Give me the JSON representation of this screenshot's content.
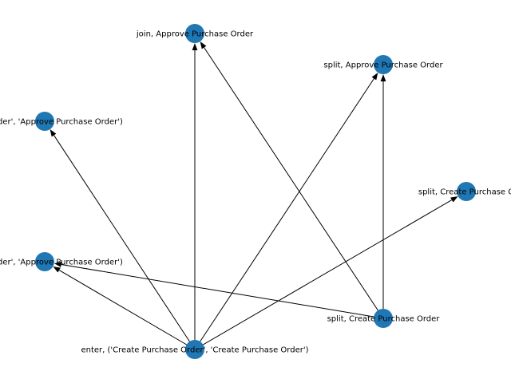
{
  "graph": {
    "node_color": "#1f77b4",
    "edge_color": "#000000",
    "nodes": [
      {
        "id": "n1",
        "name": "node-join-approve-purchase-order",
        "label": "join, Approve Purchase Order"
      },
      {
        "id": "n2",
        "name": "node-split-approve-purchase-order",
        "label": "split, Approve Purchase Order"
      },
      {
        "id": "n3",
        "name": "node-tuple-approve-upper",
        "label": "hase Order', 'Approve Purchase Order')"
      },
      {
        "id": "n4",
        "name": "node-split-create-purchase-order-right",
        "label": "split, Create Purchase O"
      },
      {
        "id": "n5",
        "name": "node-tuple-approve-lower",
        "label": "hase Order', 'Approve Purchase Order')"
      },
      {
        "id": "n6",
        "name": "node-split-create-purchase-order",
        "label": "split, Create Purchase Order"
      },
      {
        "id": "n7",
        "name": "node-enter-create-purchase-order",
        "label": "enter, ('Create Purchase Order', 'Create Purchase Order')"
      }
    ],
    "edges": [
      {
        "from": "n7",
        "to": "n1"
      },
      {
        "from": "n7",
        "to": "n2"
      },
      {
        "from": "n7",
        "to": "n3"
      },
      {
        "from": "n7",
        "to": "n4"
      },
      {
        "from": "n7",
        "to": "n5"
      },
      {
        "from": "n6",
        "to": "n1"
      },
      {
        "from": "n6",
        "to": "n2"
      },
      {
        "from": "n6",
        "to": "n5"
      }
    ]
  }
}
